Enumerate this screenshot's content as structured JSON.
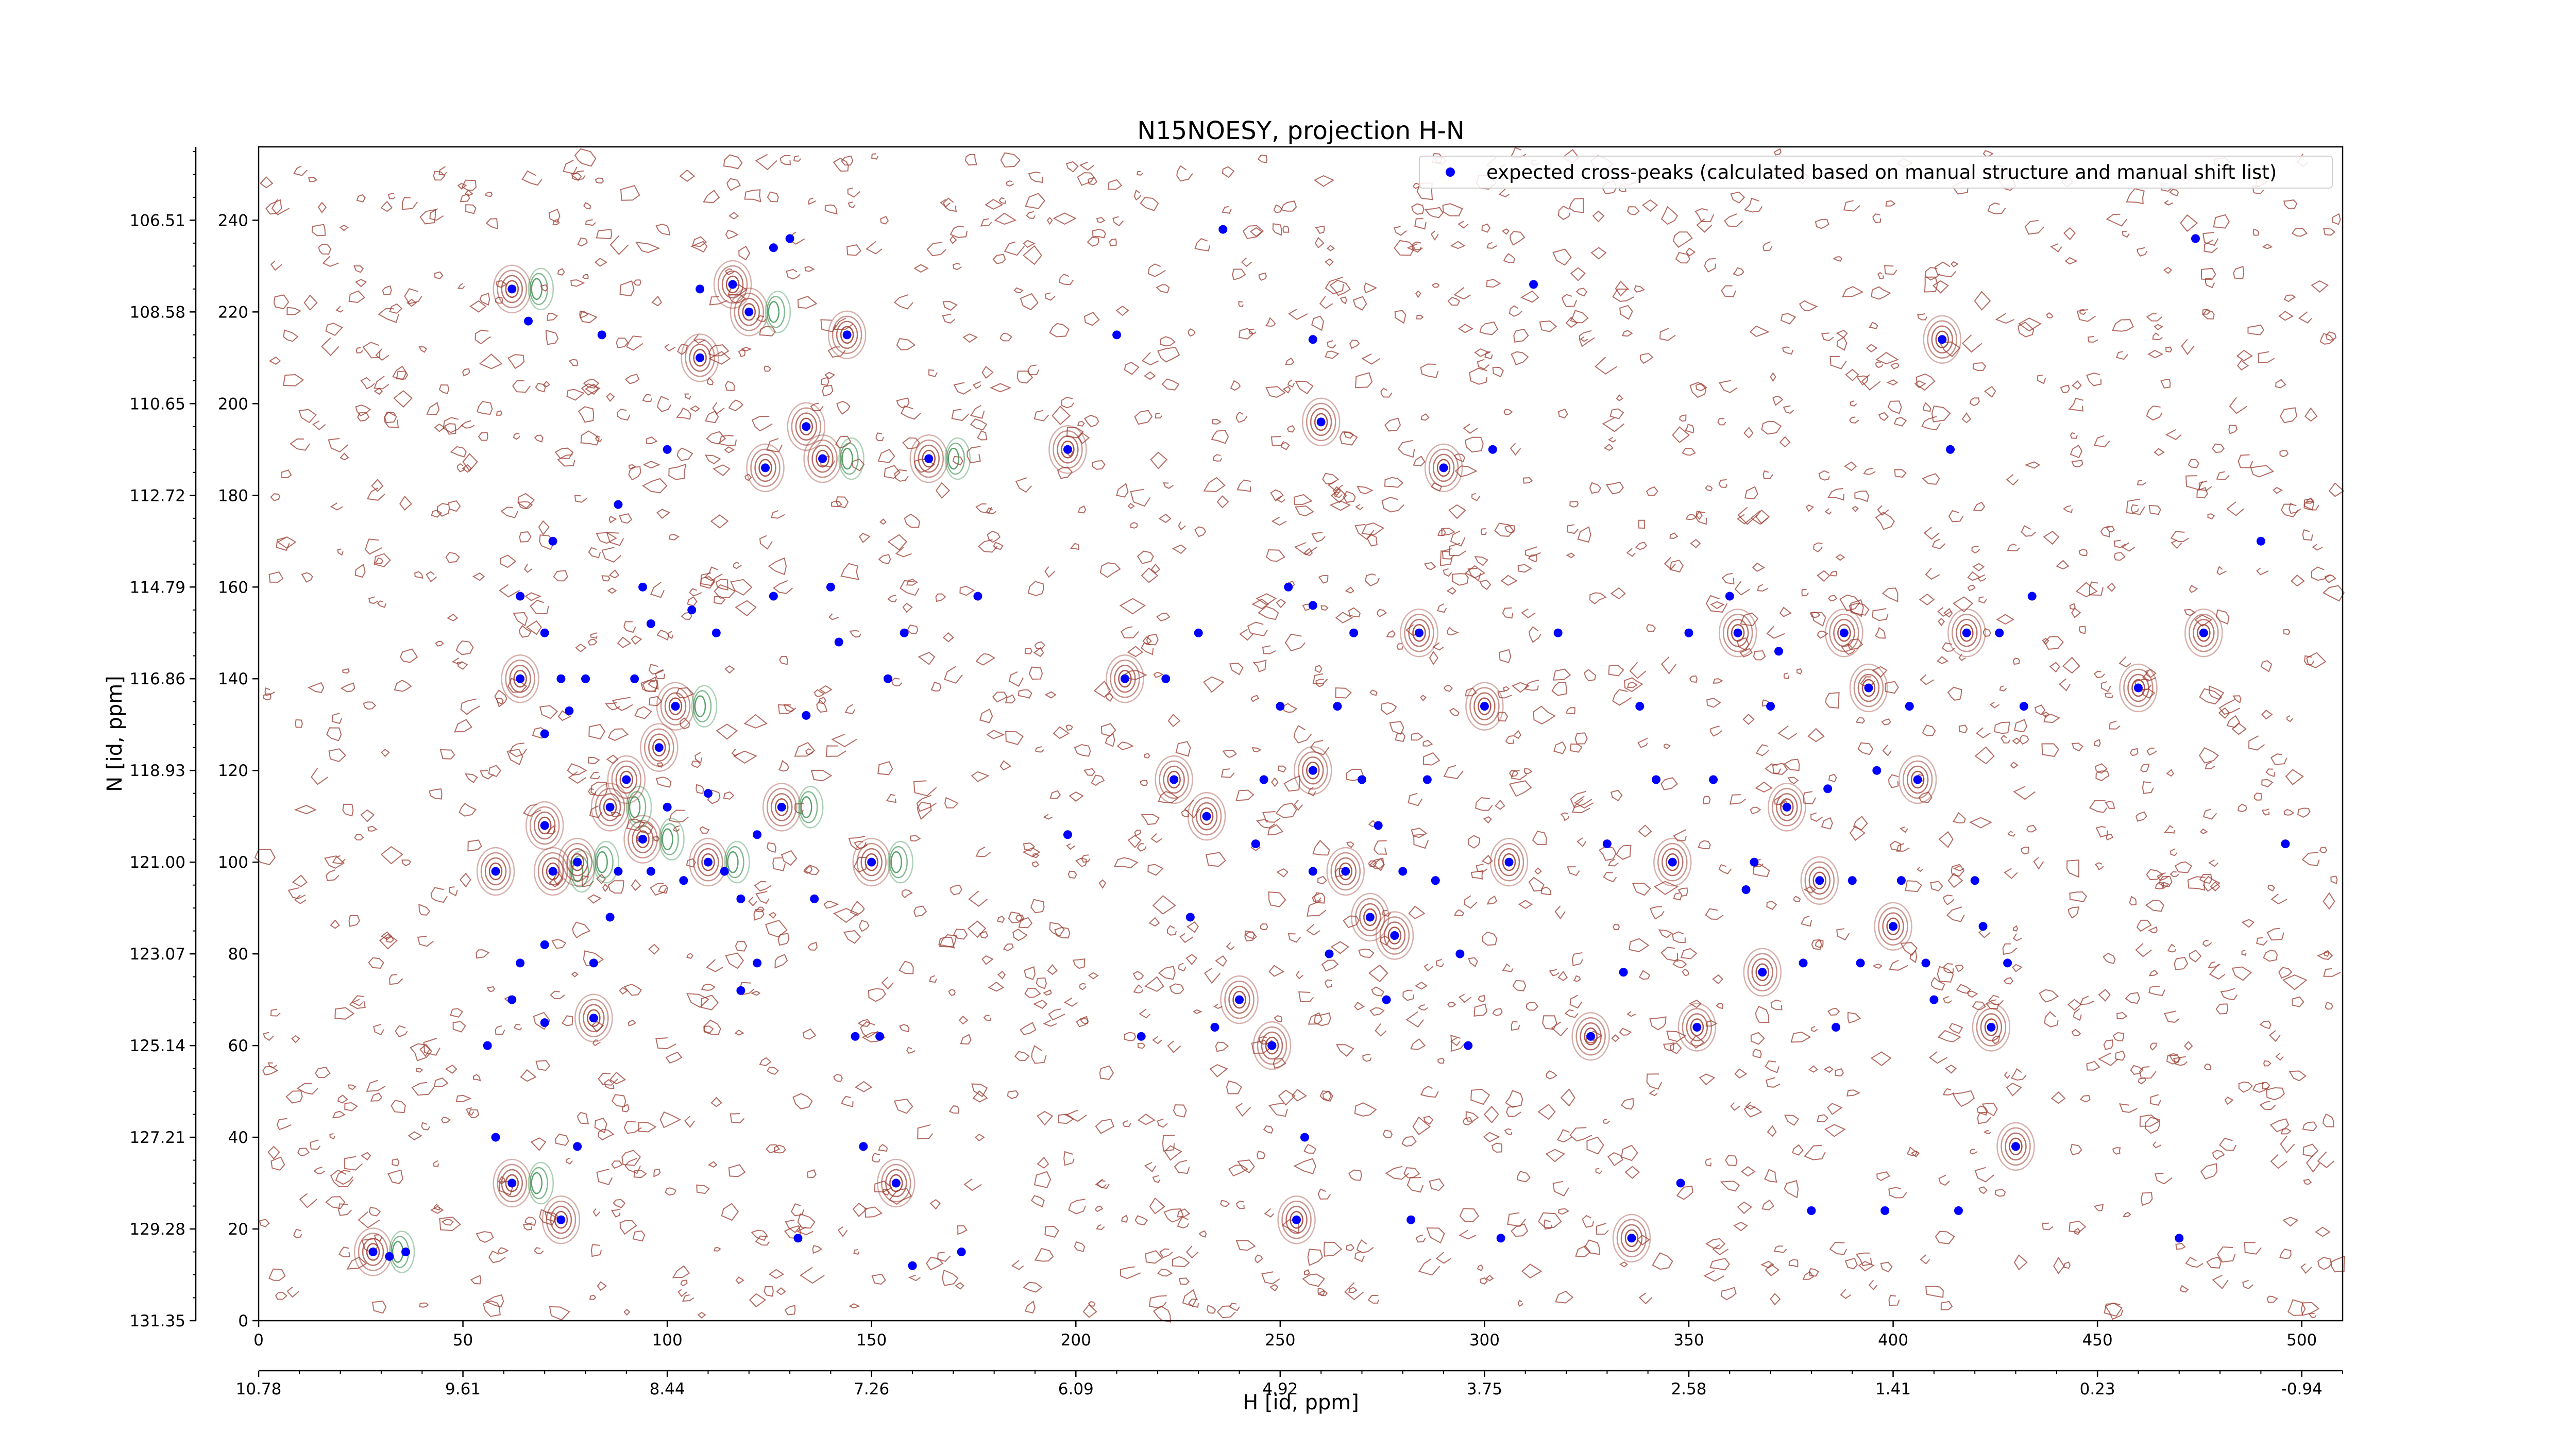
{
  "chart_data": {
    "type": "scatter",
    "title": "N15NOESY, projection H-N",
    "xlabel": "H [id, ppm]",
    "ylabel": "N [id, ppm]",
    "x_index_range": [
      0,
      510
    ],
    "y_index_range": [
      0,
      256
    ],
    "x_index_ticks": [
      0,
      50,
      100,
      150,
      200,
      250,
      300,
      350,
      400,
      450,
      500
    ],
    "x_ppm_ticks": [
      "10.78",
      "9.61",
      "8.44",
      "7.26",
      "6.09",
      "4.92",
      "3.75",
      "2.58",
      "1.41",
      "0.23",
      "-0.94"
    ],
    "y_index_ticks": [
      0,
      20,
      40,
      60,
      80,
      100,
      120,
      140,
      160,
      180,
      200,
      220,
      240
    ],
    "y_ppm_ticks": [
      "131.35",
      "129.28",
      "127.21",
      "125.14",
      "123.07",
      "121.00",
      "118.93",
      "116.86",
      "114.79",
      "112.72",
      "110.65",
      "108.58",
      "106.51"
    ],
    "legend": {
      "position": "top-right",
      "entries": [
        "expected cross-peaks (calculated based on manual structure and manual shift list)"
      ]
    },
    "colors": {
      "marker": "#0000ff",
      "positive_contour": "#9c3a2e",
      "negative_contour": "#2e8b46"
    },
    "series": [
      {
        "name": "expected cross-peaks (calculated based on manual structure and manual shift list)",
        "points": [
          [
            28,
            15
          ],
          [
            32,
            14
          ],
          [
            36,
            15
          ],
          [
            58,
            98
          ],
          [
            56,
            60
          ],
          [
            58,
            40
          ],
          [
            62,
            30
          ],
          [
            62,
            70
          ],
          [
            64,
            158
          ],
          [
            64,
            140
          ],
          [
            64,
            78
          ],
          [
            66,
            218
          ],
          [
            62,
            225
          ],
          [
            70,
            150
          ],
          [
            70,
            128
          ],
          [
            70,
            108
          ],
          [
            70,
            82
          ],
          [
            70,
            65
          ],
          [
            72,
            98
          ],
          [
            72,
            170
          ],
          [
            74,
            140
          ],
          [
            74,
            22
          ],
          [
            76,
            133
          ],
          [
            78,
            38
          ],
          [
            78,
            100
          ],
          [
            80,
            140
          ],
          [
            82,
            78
          ],
          [
            82,
            66
          ],
          [
            84,
            215
          ],
          [
            86,
            88
          ],
          [
            86,
            112
          ],
          [
            88,
            178
          ],
          [
            88,
            98
          ],
          [
            90,
            118
          ],
          [
            92,
            140
          ],
          [
            94,
            160
          ],
          [
            94,
            105
          ],
          [
            96,
            152
          ],
          [
            96,
            98
          ],
          [
            98,
            125
          ],
          [
            100,
            190
          ],
          [
            100,
            112
          ],
          [
            102,
            134
          ],
          [
            104,
            96
          ],
          [
            106,
            155
          ],
          [
            108,
            210
          ],
          [
            108,
            225
          ],
          [
            110,
            115
          ],
          [
            110,
            100
          ],
          [
            112,
            150
          ],
          [
            114,
            98
          ],
          [
            116,
            226
          ],
          [
            118,
            92
          ],
          [
            118,
            72
          ],
          [
            120,
            220
          ],
          [
            122,
            106
          ],
          [
            122,
            78
          ],
          [
            124,
            186
          ],
          [
            126,
            158
          ],
          [
            126,
            234
          ],
          [
            128,
            112
          ],
          [
            130,
            236
          ],
          [
            132,
            18
          ],
          [
            134,
            195
          ],
          [
            134,
            132
          ],
          [
            136,
            92
          ],
          [
            138,
            188
          ],
          [
            140,
            160
          ],
          [
            142,
            148
          ],
          [
            144,
            215
          ],
          [
            146,
            62
          ],
          [
            148,
            38
          ],
          [
            150,
            100
          ],
          [
            152,
            62
          ],
          [
            154,
            140
          ],
          [
            156,
            30
          ],
          [
            158,
            150
          ],
          [
            160,
            12
          ],
          [
            164,
            188
          ],
          [
            172,
            15
          ],
          [
            176,
            158
          ],
          [
            198,
            190
          ],
          [
            198,
            106
          ],
          [
            210,
            215
          ],
          [
            212,
            140
          ],
          [
            216,
            62
          ],
          [
            222,
            140
          ],
          [
            224,
            118
          ],
          [
            228,
            88
          ],
          [
            230,
            150
          ],
          [
            232,
            110
          ],
          [
            234,
            64
          ],
          [
            236,
            238
          ],
          [
            240,
            70
          ],
          [
            244,
            104
          ],
          [
            246,
            118
          ],
          [
            248,
            60
          ],
          [
            250,
            134
          ],
          [
            252,
            160
          ],
          [
            254,
            22
          ],
          [
            256,
            40
          ],
          [
            258,
            156
          ],
          [
            258,
            120
          ],
          [
            258,
            98
          ],
          [
            258,
            214
          ],
          [
            260,
            196
          ],
          [
            262,
            80
          ],
          [
            264,
            134
          ],
          [
            266,
            98
          ],
          [
            268,
            150
          ],
          [
            270,
            118
          ],
          [
            272,
            88
          ],
          [
            274,
            108
          ],
          [
            276,
            70
          ],
          [
            278,
            84
          ],
          [
            280,
            98
          ],
          [
            282,
            22
          ],
          [
            284,
            150
          ],
          [
            286,
            118
          ],
          [
            288,
            96
          ],
          [
            290,
            186
          ],
          [
            294,
            80
          ],
          [
            296,
            60
          ],
          [
            300,
            134
          ],
          [
            302,
            190
          ],
          [
            304,
            18
          ],
          [
            306,
            100
          ],
          [
            312,
            226
          ],
          [
            318,
            150
          ],
          [
            326,
            62
          ],
          [
            330,
            104
          ],
          [
            334,
            76
          ],
          [
            336,
            18
          ],
          [
            338,
            134
          ],
          [
            342,
            118
          ],
          [
            346,
            100
          ],
          [
            348,
            30
          ],
          [
            350,
            150
          ],
          [
            352,
            64
          ],
          [
            356,
            118
          ],
          [
            360,
            158
          ],
          [
            362,
            150
          ],
          [
            364,
            94
          ],
          [
            366,
            100
          ],
          [
            368,
            76
          ],
          [
            370,
            134
          ],
          [
            372,
            146
          ],
          [
            374,
            112
          ],
          [
            378,
            78
          ],
          [
            380,
            24
          ],
          [
            382,
            96
          ],
          [
            384,
            116
          ],
          [
            386,
            64
          ],
          [
            388,
            150
          ],
          [
            390,
            96
          ],
          [
            392,
            78
          ],
          [
            394,
            138
          ],
          [
            396,
            120
          ],
          [
            398,
            24
          ],
          [
            400,
            86
          ],
          [
            402,
            96
          ],
          [
            404,
            134
          ],
          [
            406,
            118
          ],
          [
            408,
            78
          ],
          [
            410,
            70
          ],
          [
            412,
            214
          ],
          [
            414,
            190
          ],
          [
            416,
            24
          ],
          [
            418,
            150
          ],
          [
            420,
            96
          ],
          [
            422,
            86
          ],
          [
            424,
            64
          ],
          [
            426,
            150
          ],
          [
            428,
            78
          ],
          [
            430,
            38
          ],
          [
            432,
            134
          ],
          [
            434,
            158
          ],
          [
            460,
            138
          ],
          [
            470,
            18
          ],
          [
            474,
            236
          ],
          [
            476,
            150
          ],
          [
            490,
            170
          ],
          [
            496,
            104
          ]
        ]
      }
    ]
  }
}
